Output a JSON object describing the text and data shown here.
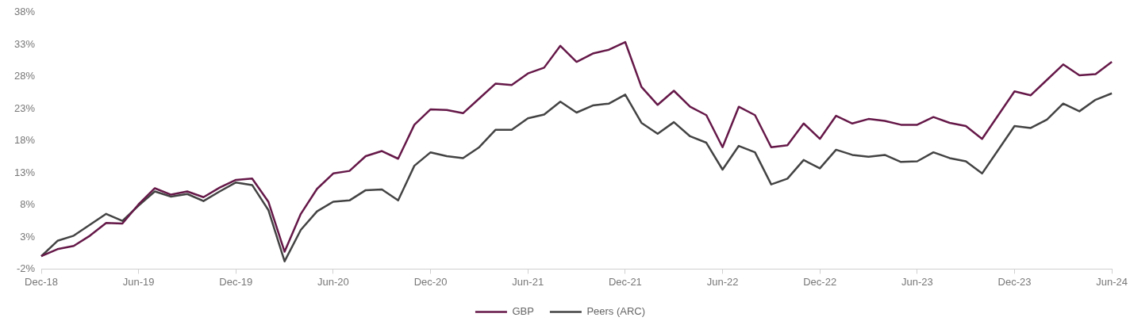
{
  "chart_data": {
    "type": "line",
    "categories": [
      "Dec-18",
      null,
      null,
      null,
      null,
      null,
      "Jun-19",
      null,
      null,
      null,
      null,
      null,
      "Dec-19",
      null,
      null,
      null,
      null,
      null,
      "Jun-20",
      null,
      null,
      null,
      null,
      null,
      "Dec-20",
      null,
      null,
      null,
      null,
      null,
      "Jun-21",
      null,
      null,
      null,
      null,
      null,
      "Dec-21",
      null,
      null,
      null,
      null,
      null,
      "Jun-22",
      null,
      null,
      null,
      null,
      null,
      "Dec-22",
      null,
      null,
      null,
      null,
      null,
      "Jun-23",
      null,
      null,
      null,
      null,
      null,
      "Dec-23",
      null,
      null,
      null,
      null,
      null,
      "Jun-24"
    ],
    "series": [
      {
        "name": "GBP",
        "color": "#651848",
        "values": [
          0,
          1.1,
          1.6,
          3.2,
          5.2,
          5.1,
          8.1,
          10.6,
          9.6,
          10.1,
          9.2,
          10.7,
          11.9,
          12.1,
          8.5,
          0.7,
          6.6,
          10.5,
          12.9,
          13.3,
          15.6,
          16.4,
          15.2,
          20.5,
          22.9,
          22.8,
          22.3,
          24.6,
          26.9,
          26.7,
          28.5,
          29.4,
          32.8,
          30.3,
          31.6,
          32.2,
          33.4,
          26.4,
          23.6,
          25.8,
          23.3,
          22.0,
          17.0,
          23.3,
          22.0,
          17.0,
          17.3,
          20.7,
          18.3,
          21.9,
          20.7,
          21.4,
          21.1,
          20.5,
          20.5,
          21.7,
          20.8,
          20.3,
          18.3,
          22.0,
          25.7,
          25.1,
          27.5,
          29.9,
          28.2,
          28.4,
          30.3
        ]
      },
      {
        "name": "Peers (ARC)",
        "color": "#434343",
        "values": [
          0,
          2.4,
          3.2,
          4.9,
          6.6,
          5.5,
          7.9,
          10.1,
          9.3,
          9.7,
          8.6,
          10.1,
          11.5,
          11.1,
          7.2,
          -0.8,
          4.1,
          7.0,
          8.5,
          8.7,
          10.3,
          10.4,
          8.7,
          14.1,
          16.2,
          15.6,
          15.3,
          17.0,
          19.7,
          19.7,
          21.5,
          22.1,
          24.1,
          22.4,
          23.5,
          23.8,
          25.2,
          20.8,
          19.1,
          20.9,
          18.7,
          17.7,
          13.5,
          17.2,
          16.2,
          11.2,
          12.1,
          15.0,
          13.7,
          16.6,
          15.8,
          15.5,
          15.8,
          14.7,
          14.8,
          16.2,
          15.3,
          14.8,
          12.9,
          16.6,
          20.3,
          20.0,
          21.3,
          23.8,
          22.6,
          24.4,
          25.4
        ]
      }
    ],
    "ylim": [
      -2,
      38
    ],
    "yticks": [
      {
        "value": -2,
        "label": "-2%"
      },
      {
        "value": 3,
        "label": "3%"
      },
      {
        "value": 8,
        "label": "8%"
      },
      {
        "value": 13,
        "label": "13%"
      },
      {
        "value": 18,
        "label": "18%"
      },
      {
        "value": 23,
        "label": "23%"
      },
      {
        "value": 28,
        "label": "28%"
      },
      {
        "value": 33,
        "label": "33%"
      },
      {
        "value": 38,
        "label": "38%"
      }
    ],
    "grid": false,
    "legend": "bottom",
    "marker": "none",
    "line_style": "solid"
  }
}
